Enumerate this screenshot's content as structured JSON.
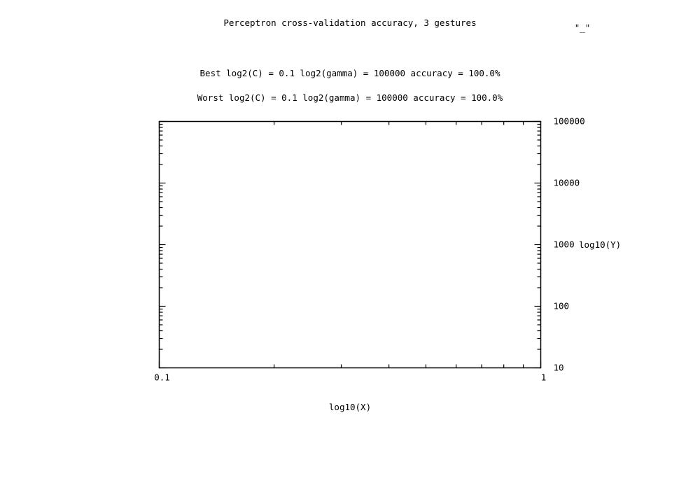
{
  "chart_data": {
    "type": "scatter",
    "title": "Perceptron cross-validation accuracy, 3 gestures",
    "legend_label": "\"_\"",
    "legend_position": "top-right",
    "annotations": [
      "Best log2(C) = 0.1  log2(gamma) = 100000  accuracy = 100.0%",
      "Worst log2(C) = 0.1  log2(gamma) = 100000   accuracy = 100.0%"
    ],
    "xlabel": "log10(X)",
    "ylabel": "log10(Y)",
    "x_scale": "log",
    "y_scale": "log",
    "xlim": [
      0.1,
      1
    ],
    "ylim": [
      10,
      100000
    ],
    "x_ticks": [
      0.1,
      1
    ],
    "x_tick_labels": [
      "0.1",
      "1"
    ],
    "y_ticks": [
      10,
      100,
      1000,
      10000,
      100000
    ],
    "y_tick_labels": [
      "10",
      "100",
      "1000",
      "10000",
      "100000"
    ],
    "y_axis_side": "right",
    "grid": false,
    "points": []
  }
}
